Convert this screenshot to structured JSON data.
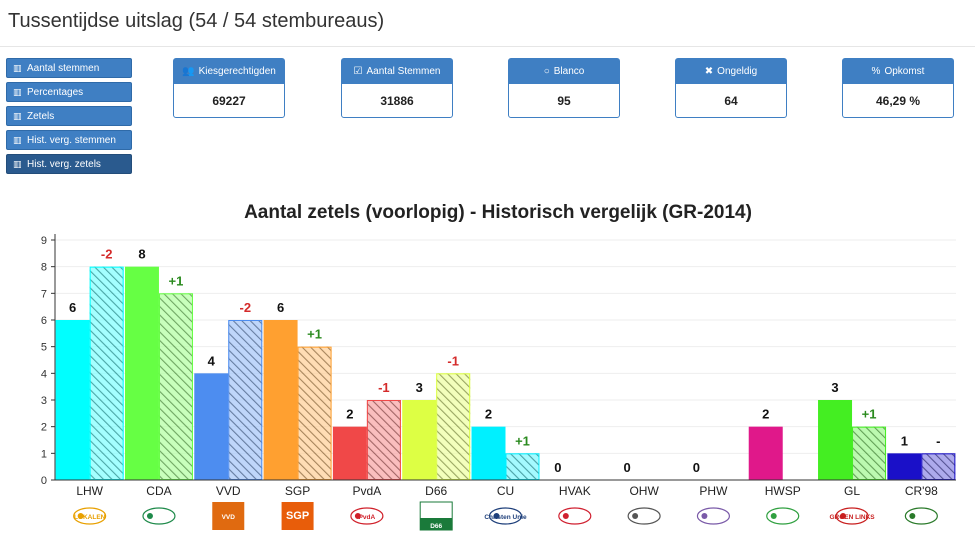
{
  "page": {
    "title": "Tussentijdse uitslag (54 / 54 stembureaus)"
  },
  "sidebar": {
    "items": [
      {
        "label": "Aantal stemmen",
        "icon": "bar-chart-icon"
      },
      {
        "label": "Percentages",
        "icon": "bar-chart-icon"
      },
      {
        "label": "Zetels",
        "icon": "bar-chart-icon"
      },
      {
        "label": "Hist. verg. stemmen",
        "icon": "bar-chart-icon"
      },
      {
        "label": "Hist. verg. zetels",
        "icon": "bar-chart-icon",
        "active": true
      }
    ]
  },
  "stats": [
    {
      "label": "Kiesgerechtigden",
      "value": "69227",
      "icon": "users-icon"
    },
    {
      "label": "Aantal Stemmen",
      "value": "31886",
      "icon": "checkbox-icon"
    },
    {
      "label": "Blanco",
      "value": "95",
      "icon": "circle-icon"
    },
    {
      "label": "Ongeldig",
      "value": "64",
      "icon": "x-icon"
    },
    {
      "label": "Opkomst",
      "value": "46,29",
      "unit": "%",
      "icon": "percent-icon"
    }
  ],
  "chart_data": {
    "type": "bar",
    "title": "Aantal zetels (voorlopig) - Historisch vergelijk (GR-2014)",
    "ylim": [
      0,
      9
    ],
    "yticks": [
      "0",
      "1",
      "2",
      "3",
      "4",
      "5",
      "6",
      "7",
      "8",
      "9"
    ],
    "grid": true,
    "categories": [
      "LHW",
      "CDA",
      "VVD",
      "SGP",
      "PvdA",
      "D66",
      "CU",
      "HVAK",
      "OHW",
      "PHW",
      "HWSP",
      "GL",
      "CR'98"
    ],
    "current": [
      6,
      8,
      4,
      6,
      2,
      3,
      2,
      0,
      0,
      0,
      2,
      3,
      1
    ],
    "previous": [
      8,
      7,
      6,
      5,
      3,
      4,
      1,
      null,
      null,
      null,
      null,
      2,
      1
    ],
    "value_labels": [
      "6",
      "8",
      "4",
      "6",
      "2",
      "3",
      "2",
      "0",
      "0",
      "0",
      "2",
      "3",
      "1"
    ],
    "diff_labels": [
      "-2",
      "+1",
      "-2",
      "+1",
      "-1",
      "-1",
      "+1",
      "",
      "",
      "",
      "",
      "+1",
      "-"
    ],
    "colors": [
      "#00ffff",
      "#66ff44",
      "#4d8df0",
      "#ffa030",
      "#f04848",
      "#ddff44",
      "#00f0ff",
      "#aaaaaa",
      "#aaaaaa",
      "#aaaaaa",
      "#e0188a",
      "#44ee22",
      "#1a10c8"
    ],
    "logos": [
      "LOKALEN",
      "",
      "VVD",
      "SGP",
      "PvdA",
      "D66",
      "Christen Unie",
      "",
      "",
      "",
      "",
      "GROEN LINKS",
      ""
    ],
    "logo_colors": [
      "#e8a000",
      "#1e8a4a",
      "#e06a10",
      "#e85d0a",
      "#d0202a",
      "#1a7a3a",
      "#1e3f7a",
      "#d02030",
      "#555555",
      "#7a5aa8",
      "#30a040",
      "#c81e1e",
      "#2a7a2a"
    ]
  }
}
